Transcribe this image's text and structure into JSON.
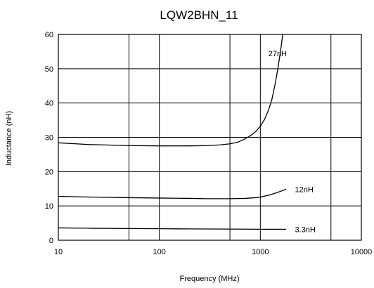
{
  "chart_data": {
    "type": "line",
    "title": "LQW2BHN_11",
    "xlabel": "Frequency (MHz)",
    "ylabel": "Inductance (nH)",
    "xscale": "log",
    "xlim": [
      10,
      10000
    ],
    "ylim": [
      0,
      60
    ],
    "xticks": [
      10,
      100,
      1000,
      10000
    ],
    "xtick_labels": [
      "10",
      "100",
      "1000",
      "10000"
    ],
    "xgrid": [
      10,
      50,
      100,
      500,
      1000,
      5000,
      10000
    ],
    "yticks": [
      0,
      10,
      20,
      30,
      40,
      50,
      60
    ],
    "ytick_labels": [
      "0",
      "10",
      "20",
      "30",
      "40",
      "50",
      "60"
    ],
    "grid": true,
    "legend": "none",
    "series": [
      {
        "name": "27nH",
        "x": [
          10,
          20,
          50,
          100,
          200,
          300,
          400,
          500,
          600,
          700,
          800,
          900,
          1000,
          1100,
          1200,
          1300,
          1400,
          1500,
          1600,
          1700
        ],
        "y": [
          28.4,
          27.9,
          27.6,
          27.5,
          27.5,
          27.6,
          27.8,
          28.1,
          28.6,
          29.5,
          30.5,
          31.7,
          33.2,
          35.2,
          37.8,
          41.0,
          45.5,
          50.5,
          56.0,
          62.0
        ],
        "label_at": [
          1200,
          54.5
        ]
      },
      {
        "name": "12nH",
        "x": [
          10,
          20,
          50,
          100,
          200,
          300,
          500,
          700,
          900,
          1000,
          1200,
          1400,
          1600,
          1800
        ],
        "y": [
          12.8,
          12.6,
          12.4,
          12.3,
          12.2,
          12.1,
          12.1,
          12.2,
          12.4,
          12.6,
          13.1,
          13.7,
          14.3,
          14.9
        ],
        "label_at": [
          2200,
          14.8
        ]
      },
      {
        "name": "3.3nH",
        "x": [
          10,
          20,
          50,
          100,
          200,
          500,
          1000,
          1800
        ],
        "y": [
          3.6,
          3.5,
          3.4,
          3.35,
          3.3,
          3.25,
          3.2,
          3.2
        ],
        "label_at": [
          2200,
          3.2
        ]
      }
    ]
  }
}
